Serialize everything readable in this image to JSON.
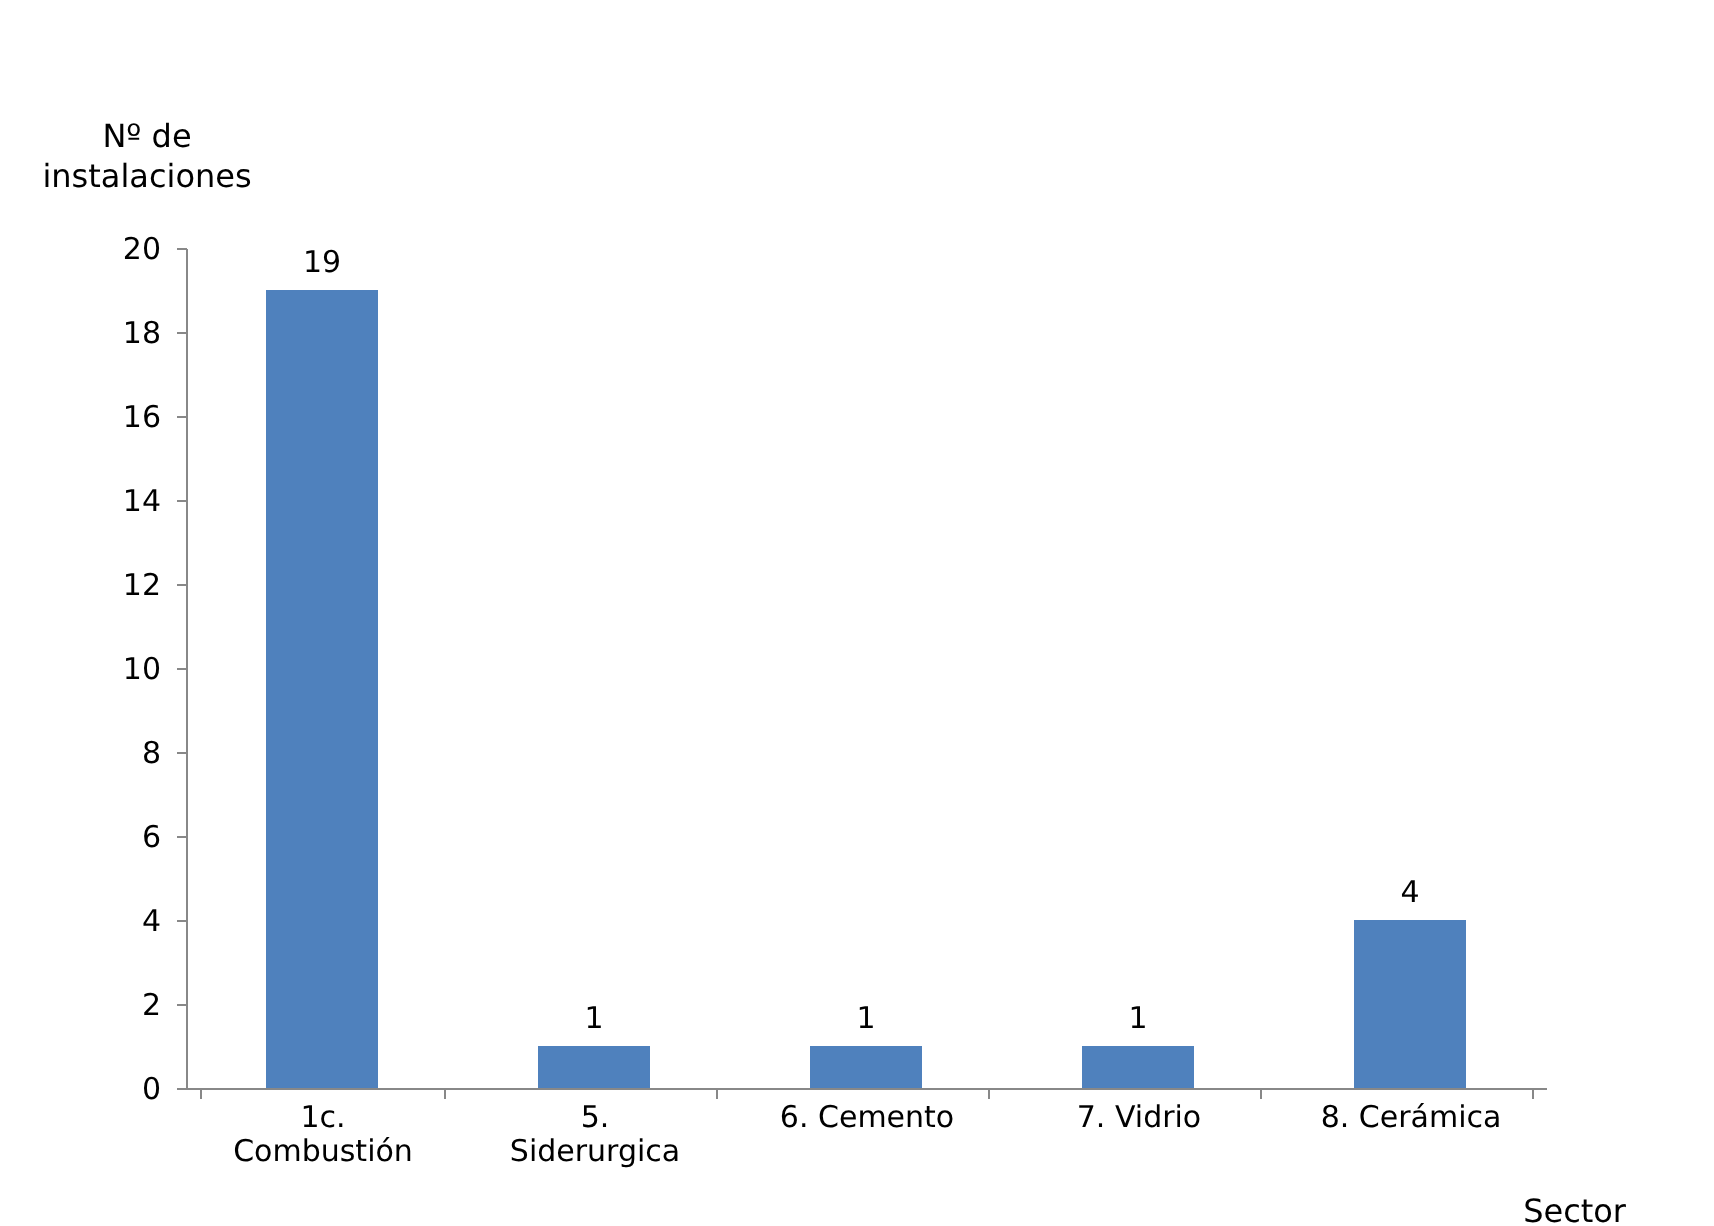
{
  "chart_data": {
    "type": "bar",
    "ylabel": "Nº de\ninstalaciones",
    "xlabel": "Sector",
    "categories": [
      "1c.\nCombustión",
      "5.\nSiderurgica",
      "6. Cemento",
      "7. Vidrio",
      "8. Cerámica"
    ],
    "values": [
      19,
      1,
      1,
      1,
      4
    ],
    "color": "#4f81bd",
    "data_labels": true,
    "ylim": [
      0,
      20
    ],
    "yticks": [
      0,
      2,
      4,
      6,
      8,
      10,
      12,
      14,
      16,
      18,
      20
    ],
    "grid": false
  }
}
